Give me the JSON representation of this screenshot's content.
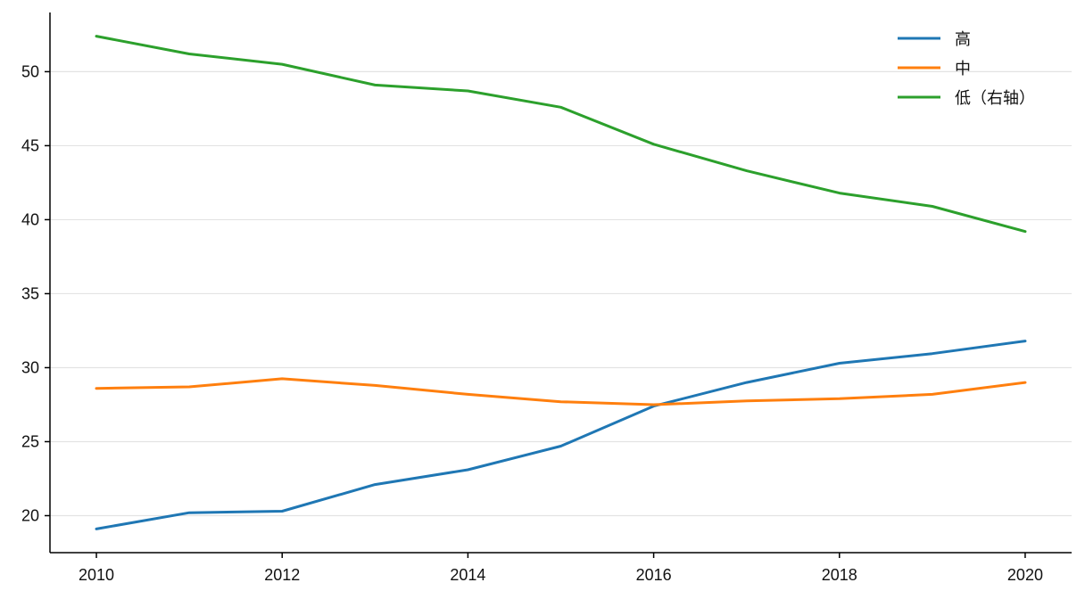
{
  "chart_data": {
    "type": "line",
    "title": "",
    "xlabel": "",
    "ylabel": "",
    "x": [
      2010,
      2011,
      2012,
      2013,
      2014,
      2015,
      2016,
      2017,
      2018,
      2019,
      2020
    ],
    "xticks": [
      2010,
      2012,
      2014,
      2016,
      2018,
      2020
    ],
    "yticks": [
      20,
      25,
      30,
      35,
      40,
      45,
      50
    ],
    "xlim": [
      2009.5,
      2020.5
    ],
    "ylim": [
      17.5,
      54
    ],
    "grid": "horizontal",
    "legend_position": "top-right",
    "series": [
      {
        "name": "高",
        "color": "#1f77b4",
        "values": [
          19.1,
          20.2,
          20.3,
          22.1,
          23.1,
          24.7,
          27.4,
          29.0,
          30.3,
          30.95,
          31.8
        ]
      },
      {
        "name": "中",
        "color": "#ff7f0e",
        "values": [
          28.6,
          28.7,
          29.25,
          28.8,
          28.2,
          27.7,
          27.5,
          27.75,
          27.9,
          28.2,
          29.0
        ]
      },
      {
        "name": "低（右轴）",
        "color": "#2ca02c",
        "values": [
          52.4,
          51.2,
          50.5,
          49.1,
          48.7,
          47.6,
          45.1,
          43.3,
          41.8,
          40.9,
          39.2
        ]
      }
    ]
  }
}
